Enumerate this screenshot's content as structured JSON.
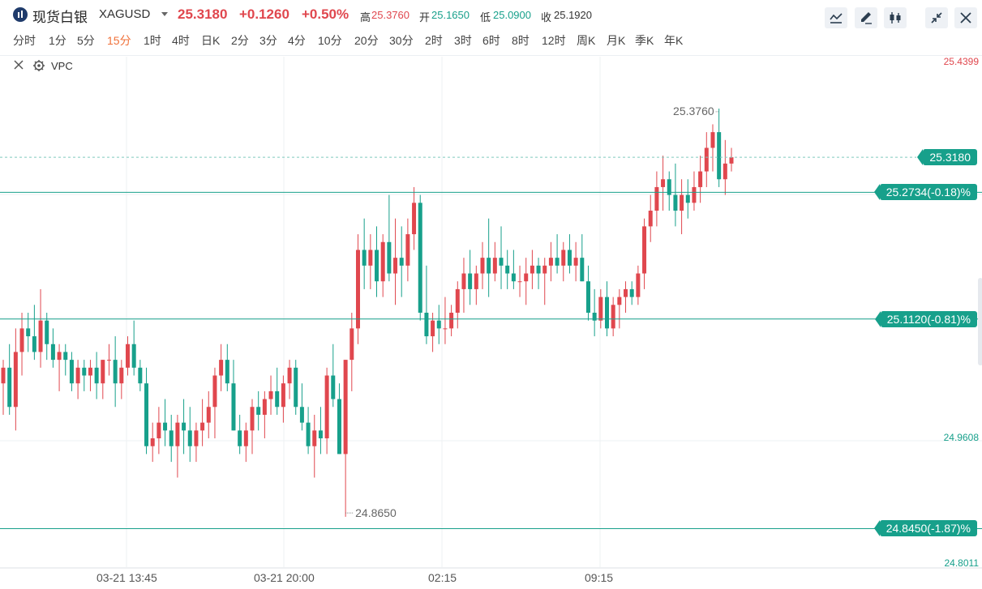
{
  "header": {
    "symbol_name": "现货白银",
    "symbol_code": "XAGUSD",
    "price": "25.3180",
    "change": "+0.1260",
    "change_pct": "+0.50%",
    "high_label": "高",
    "high_value": "25.3760",
    "open_label": "开",
    "open_value": "25.1650",
    "low_label": "低",
    "low_value": "25.0900",
    "close_label": "收",
    "close_value": "25.1920",
    "tools": [
      "line-tool-icon",
      "draw-tool-icon",
      "candle-type-icon",
      "collapse-icon",
      "close-icon"
    ]
  },
  "periods": [
    "分时",
    "1分",
    "5分",
    "15分",
    "1时",
    "4时",
    "日K",
    "2分",
    "3分",
    "4分",
    "10分",
    "20分",
    "30分",
    "2时",
    "3时",
    "6时",
    "8时",
    "12时",
    "周K",
    "月K",
    "季K",
    "年K"
  ],
  "active_period": "15分",
  "indicator": {
    "label": "VPC"
  },
  "colors": {
    "up": "#e0474e",
    "down": "#17a08b",
    "grid": "#eef0f3",
    "line": "#17a08b"
  },
  "chart_data": {
    "type": "candlestick",
    "symbol": "XAGUSD",
    "interval": "15分",
    "ylim": [
      24.8011,
      25.4399
    ],
    "y_ticks": [
      "25.4399",
      "24.9608",
      "24.8011"
    ],
    "x_ticks": [
      "03-21 13:45",
      "03-21 20:00",
      "02:15",
      "09:15"
    ],
    "grid": true,
    "current_price": "25.3180",
    "high_marker": "25.3760",
    "low_marker": "24.8650",
    "levels": [
      {
        "value": 25.2734,
        "label": "25.2734(-0.18)%"
      },
      {
        "value": 25.112,
        "label": "25.1120(-0.81)%"
      },
      {
        "value": 24.845,
        "label": "24.8450(-1.87)%"
      }
    ],
    "candles": [
      [
        25.03,
        25.06,
        24.99,
        25.05
      ],
      [
        25.05,
        25.08,
        24.99,
        25.0
      ],
      [
        25.0,
        25.1,
        24.97,
        25.07
      ],
      [
        25.07,
        25.12,
        25.04,
        25.1
      ],
      [
        25.1,
        25.12,
        25.07,
        25.09
      ],
      [
        25.09,
        25.13,
        25.06,
        25.07
      ],
      [
        25.07,
        25.15,
        25.05,
        25.11
      ],
      [
        25.11,
        25.12,
        25.06,
        25.08
      ],
      [
        25.08,
        25.1,
        25.05,
        25.06
      ],
      [
        25.06,
        25.08,
        25.02,
        25.07
      ],
      [
        25.07,
        25.08,
        25.04,
        25.06
      ],
      [
        25.06,
        25.07,
        25.02,
        25.03
      ],
      [
        25.03,
        25.06,
        25.01,
        25.05
      ],
      [
        25.05,
        25.06,
        25.02,
        25.04
      ],
      [
        25.04,
        25.06,
        25.02,
        25.05
      ],
      [
        25.05,
        25.07,
        25.01,
        25.03
      ],
      [
        25.03,
        25.06,
        25.01,
        25.06
      ],
      [
        25.06,
        25.08,
        25.04,
        25.06
      ],
      [
        25.06,
        25.09,
        25.0,
        25.03
      ],
      [
        25.03,
        25.06,
        25.01,
        25.05
      ],
      [
        25.05,
        25.09,
        25.04,
        25.08
      ],
      [
        25.08,
        25.11,
        25.04,
        25.05
      ],
      [
        25.05,
        25.06,
        25.02,
        25.03
      ],
      [
        25.03,
        25.05,
        24.94,
        24.95
      ],
      [
        24.95,
        24.98,
        24.93,
        24.96
      ],
      [
        24.96,
        25.0,
        24.94,
        24.98
      ],
      [
        24.98,
        25.01,
        24.95,
        24.97
      ],
      [
        24.97,
        24.99,
        24.93,
        24.95
      ],
      [
        24.95,
        24.99,
        24.91,
        24.98
      ],
      [
        24.98,
        25.01,
        24.94,
        24.97
      ],
      [
        24.97,
        25.0,
        24.93,
        24.95
      ],
      [
        24.95,
        24.98,
        24.93,
        24.97
      ],
      [
        24.97,
        25.01,
        24.95,
        24.98
      ],
      [
        24.98,
        25.02,
        24.96,
        25.0
      ],
      [
        25.0,
        25.05,
        24.96,
        25.04
      ],
      [
        25.04,
        25.08,
        25.02,
        25.06
      ],
      [
        25.06,
        25.08,
        25.02,
        25.03
      ],
      [
        25.03,
        25.06,
        24.97,
        24.97
      ],
      [
        24.97,
        24.99,
        24.94,
        24.95
      ],
      [
        24.95,
        24.98,
        24.93,
        24.97
      ],
      [
        24.97,
        25.01,
        24.94,
        25.0
      ],
      [
        25.0,
        25.02,
        24.97,
        24.99
      ],
      [
        24.99,
        25.02,
        24.96,
        25.01
      ],
      [
        25.01,
        25.04,
        24.99,
        25.02
      ],
      [
        25.02,
        25.05,
        24.99,
        25.0
      ],
      [
        25.0,
        25.04,
        24.98,
        25.03
      ],
      [
        25.03,
        25.06,
        25.01,
        25.05
      ],
      [
        25.05,
        25.06,
        24.99,
        25.0
      ],
      [
        25.0,
        25.03,
        24.97,
        24.98
      ],
      [
        24.98,
        25.0,
        24.94,
        24.95
      ],
      [
        24.95,
        24.99,
        24.91,
        24.97
      ],
      [
        24.97,
        25.0,
        24.94,
        24.96
      ],
      [
        24.96,
        25.05,
        24.94,
        25.04
      ],
      [
        25.04,
        25.08,
        25.0,
        25.01
      ],
      [
        25.01,
        25.03,
        24.94,
        24.94
      ],
      [
        24.94,
        25.06,
        24.86,
        25.06
      ],
      [
        25.06,
        25.12,
        25.02,
        25.1
      ],
      [
        25.1,
        25.22,
        25.08,
        25.2
      ],
      [
        25.2,
        25.24,
        25.15,
        25.18
      ],
      [
        25.18,
        25.22,
        25.15,
        25.2
      ],
      [
        25.2,
        25.23,
        25.14,
        25.16
      ],
      [
        25.16,
        25.22,
        25.14,
        25.21
      ],
      [
        25.21,
        25.27,
        25.16,
        25.17
      ],
      [
        25.17,
        25.24,
        25.13,
        25.19
      ],
      [
        25.19,
        25.23,
        25.14,
        25.18
      ],
      [
        25.18,
        25.24,
        25.16,
        25.22
      ],
      [
        25.22,
        25.28,
        25.2,
        25.26
      ],
      [
        25.26,
        25.27,
        25.11,
        25.12
      ],
      [
        25.12,
        25.18,
        25.08,
        25.09
      ],
      [
        25.09,
        25.12,
        25.07,
        25.11
      ],
      [
        25.11,
        25.13,
        25.08,
        25.1
      ],
      [
        25.1,
        25.14,
        25.08,
        25.1
      ],
      [
        25.1,
        25.13,
        25.09,
        25.12
      ],
      [
        25.12,
        25.16,
        25.1,
        25.15
      ],
      [
        25.15,
        25.19,
        25.12,
        25.17
      ],
      [
        25.17,
        25.2,
        25.13,
        25.15
      ],
      [
        25.15,
        25.18,
        25.13,
        25.17
      ],
      [
        25.17,
        25.21,
        25.15,
        25.19
      ],
      [
        25.19,
        25.24,
        25.14,
        25.17
      ],
      [
        25.17,
        25.21,
        25.16,
        25.19
      ],
      [
        25.19,
        25.23,
        25.15,
        25.18
      ],
      [
        25.18,
        25.2,
        25.15,
        25.17
      ],
      [
        25.17,
        25.2,
        25.15,
        25.16
      ],
      [
        25.16,
        25.18,
        25.14,
        25.16
      ],
      [
        25.16,
        25.19,
        25.13,
        25.17
      ],
      [
        25.17,
        25.2,
        25.15,
        25.18
      ],
      [
        25.18,
        25.19,
        25.15,
        25.17
      ],
      [
        25.17,
        25.19,
        25.13,
        25.18
      ],
      [
        25.18,
        25.21,
        25.16,
        25.19
      ],
      [
        25.19,
        25.22,
        25.17,
        25.18
      ],
      [
        25.18,
        25.21,
        25.16,
        25.2
      ],
      [
        25.2,
        25.22,
        25.17,
        25.18
      ],
      [
        25.18,
        25.21,
        25.16,
        25.19
      ],
      [
        25.19,
        25.22,
        25.16,
        25.16
      ],
      [
        25.16,
        25.18,
        25.11,
        25.12
      ],
      [
        25.12,
        25.15,
        25.09,
        25.11
      ],
      [
        25.11,
        25.15,
        25.1,
        25.14
      ],
      [
        25.14,
        25.16,
        25.09,
        25.1
      ],
      [
        25.1,
        25.14,
        25.09,
        25.13
      ],
      [
        25.13,
        25.15,
        25.1,
        25.14
      ],
      [
        25.14,
        25.16,
        25.12,
        25.15
      ],
      [
        25.15,
        25.16,
        25.13,
        25.14
      ],
      [
        25.14,
        25.18,
        25.13,
        25.17
      ],
      [
        25.17,
        25.24,
        25.15,
        25.23
      ],
      [
        25.23,
        25.27,
        25.21,
        25.25
      ],
      [
        25.25,
        25.3,
        25.23,
        25.28
      ],
      [
        25.28,
        25.32,
        25.25,
        25.29
      ],
      [
        25.29,
        25.3,
        25.25,
        25.27
      ],
      [
        25.27,
        25.31,
        25.23,
        25.25
      ],
      [
        25.25,
        25.29,
        25.22,
        25.27
      ],
      [
        25.27,
        25.29,
        25.24,
        25.26
      ],
      [
        25.26,
        25.3,
        25.25,
        25.28
      ],
      [
        25.28,
        25.32,
        25.26,
        25.3
      ],
      [
        25.3,
        25.35,
        25.28,
        25.33
      ],
      [
        25.33,
        25.36,
        25.3,
        25.35
      ],
      [
        25.35,
        25.38,
        25.28,
        25.29
      ],
      [
        25.29,
        25.34,
        25.27,
        25.31
      ],
      [
        25.31,
        25.33,
        25.3,
        25.318
      ]
    ]
  }
}
